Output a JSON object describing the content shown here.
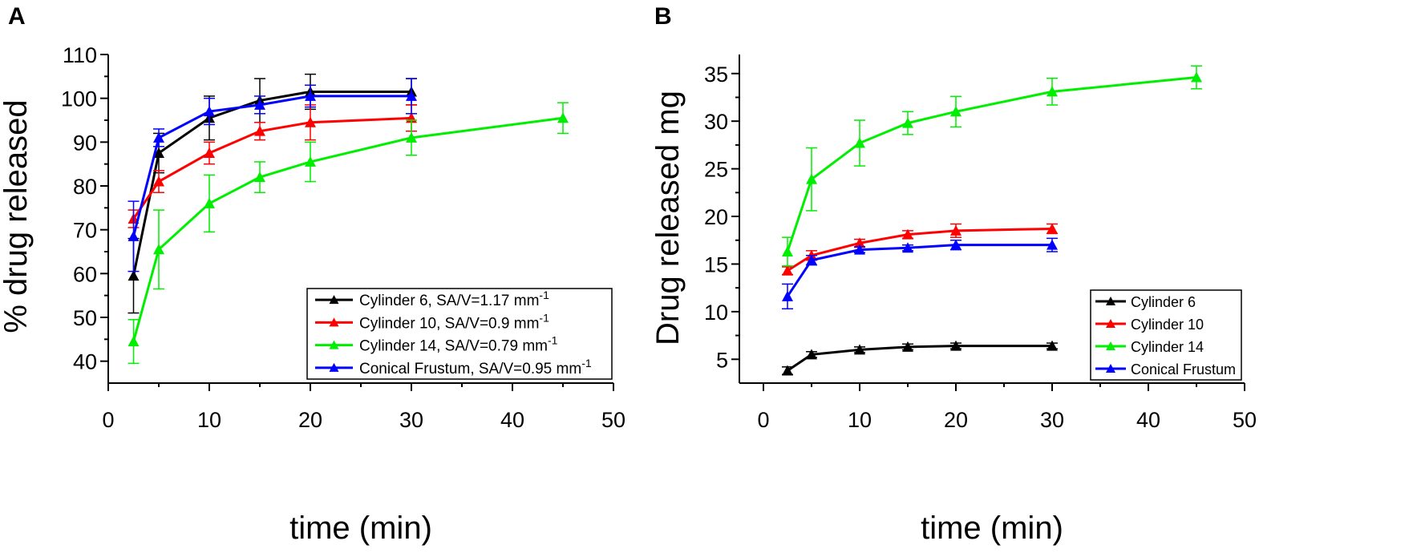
{
  "figure": {
    "panel_a_letter": "A",
    "panel_b_letter": "B"
  },
  "chart_data": [
    {
      "type": "line",
      "panel": "A",
      "title": "",
      "xlabel": "time (min)",
      "ylabel": "% drug released",
      "xlim": [
        0,
        50
      ],
      "ylim": [
        35,
        110
      ],
      "xticks": [
        0,
        10,
        20,
        30,
        40,
        50
      ],
      "yticks": [
        40,
        50,
        60,
        70,
        80,
        90,
        100,
        110
      ],
      "grid": false,
      "legend_position": "bottom-right",
      "series": [
        {
          "name": "Cylinder 6, SA/V=1.17 mm",
          "sup": "-1",
          "color": "#000000",
          "x": [
            2.5,
            5,
            10,
            15,
            20,
            30
          ],
          "y": [
            59.5,
            87.5,
            95.5,
            99.5,
            101.5,
            101.5
          ],
          "err": [
            8.5,
            4.5,
            5,
            5,
            4,
            3
          ]
        },
        {
          "name": "Cylinder 10, SA/V=0.9 mm",
          "sup": "-1",
          "color": "#ff0000",
          "x": [
            2.5,
            5,
            10,
            15,
            20,
            30
          ],
          "y": [
            72.5,
            81,
            87.5,
            92.5,
            94.5,
            95.5
          ],
          "err": [
            2,
            2.5,
            2.5,
            2,
            4,
            3
          ]
        },
        {
          "name": "Cylinder 14, SA/V=0.79 mm",
          "sup": "-1",
          "color": "#00ee00",
          "x": [
            2.5,
            5,
            10,
            15,
            20,
            30,
            45
          ],
          "y": [
            44.5,
            65.5,
            76,
            82,
            85.5,
            91,
            95.5
          ],
          "err": [
            5,
            9,
            6.5,
            3.5,
            4.5,
            4,
            3.5
          ]
        },
        {
          "name": "Conical Frustum, SA/V=0.95 mm",
          "sup": "-1",
          "color": "#0000ff",
          "x": [
            2.5,
            5,
            10,
            15,
            20,
            30
          ],
          "y": [
            68.5,
            91,
            97,
            98.5,
            100.5,
            100.5
          ],
          "err": [
            8,
            2,
            3,
            2,
            2.5,
            4
          ]
        }
      ]
    },
    {
      "type": "line",
      "panel": "B",
      "title": "",
      "xlabel": "time (min)",
      "ylabel": "Drug released mg",
      "xlim": [
        -2.5,
        50
      ],
      "ylim": [
        2.5,
        37
      ],
      "xticks": [
        0,
        10,
        20,
        30,
        40,
        50
      ],
      "yticks": [
        5,
        10,
        15,
        20,
        25,
        30,
        35
      ],
      "grid": false,
      "legend_position": "bottom-right",
      "series": [
        {
          "name": "Cylinder 6",
          "color": "#000000",
          "x": [
            2.5,
            5,
            10,
            15,
            20,
            30
          ],
          "y": [
            3.8,
            5.5,
            6.0,
            6.3,
            6.4,
            6.4
          ],
          "err": [
            0.4,
            0.3,
            0.3,
            0.3,
            0.3,
            0.3
          ]
        },
        {
          "name": "Cylinder 10",
          "color": "#ff0000",
          "x": [
            2.5,
            5,
            10,
            15,
            20,
            30
          ],
          "y": [
            14.3,
            15.9,
            17.2,
            18.1,
            18.5,
            18.7
          ],
          "err": [
            0.4,
            0.5,
            0.4,
            0.4,
            0.7,
            0.5
          ]
        },
        {
          "name": "Cylinder 14",
          "color": "#00ee00",
          "x": [
            2.5,
            5,
            10,
            15,
            20,
            30,
            45
          ],
          "y": [
            16.3,
            23.9,
            27.7,
            29.8,
            31.0,
            33.1,
            34.6
          ],
          "err": [
            1.5,
            3.3,
            2.4,
            1.2,
            1.6,
            1.4,
            1.2
          ]
        },
        {
          "name": "Conical Frustum",
          "color": "#0000ff",
          "x": [
            2.5,
            5,
            10,
            15,
            20,
            30
          ],
          "y": [
            11.6,
            15.4,
            16.5,
            16.7,
            17.0,
            17.0
          ],
          "err": [
            1.3,
            0.5,
            0.3,
            0.3,
            0.5,
            0.7
          ]
        }
      ]
    }
  ]
}
